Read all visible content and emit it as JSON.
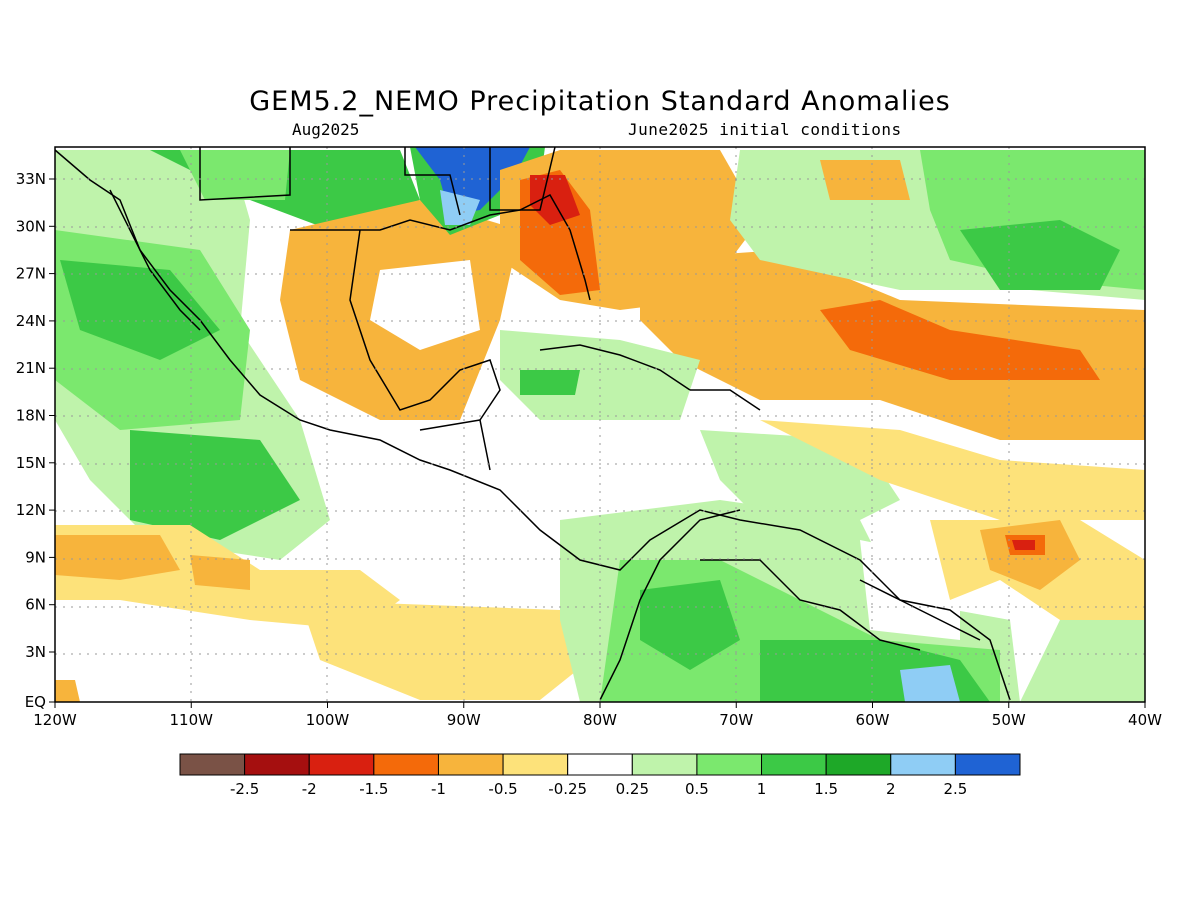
{
  "title": "GEM5.2_NEMO Precipitation Standard Anomalies",
  "subtitle_left": "Aug2025",
  "subtitle_right": "June2025 initial conditions",
  "lat_labels": [
    "33N",
    "30N",
    "27N",
    "24N",
    "21N",
    "18N",
    "15N",
    "12N",
    "9N",
    "6N",
    "3N",
    "EQ"
  ],
  "lon_labels": [
    "120W",
    "110W",
    "100W",
    "90W",
    "80W",
    "70W",
    "60W",
    "50W",
    "40W"
  ],
  "colorbar": {
    "colors": [
      "#7a5246",
      "#a50f0f",
      "#d92010",
      "#f46a0a",
      "#f7b43c",
      "#fde27a",
      "#ffffff",
      "#bff3ab",
      "#7be86e",
      "#3cc946",
      "#1ea828",
      "#8fcdf5",
      "#1f63d4"
    ],
    "labels": [
      "-2.5",
      "-2",
      "-1.5",
      "-1",
      "-0.5",
      "-0.25",
      "0.25",
      "0.5",
      "1",
      "1.5",
      "2",
      "2.5"
    ]
  }
}
